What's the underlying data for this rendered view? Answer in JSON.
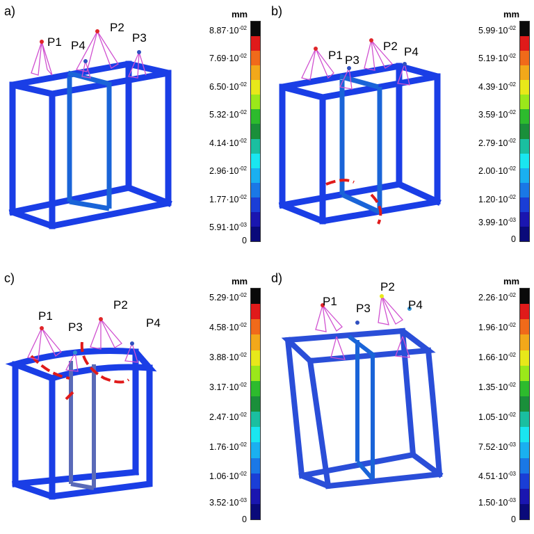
{
  "panels": [
    {
      "id": "a",
      "label": "a)",
      "unit": "mm",
      "ticks": [
        "8.87·10",
        "7.69·10",
        "6.50·10",
        "5.32·10",
        "4.14·10",
        "2.96·10",
        "1.77·10",
        "5.91·10",
        "0"
      ],
      "exps": [
        "-02",
        "-02",
        "-02",
        "-02",
        "-02",
        "-02",
        "-02",
        "-03",
        ""
      ],
      "points": [
        "P1",
        "P4",
        "P2",
        "P3"
      ]
    },
    {
      "id": "b",
      "label": "b)",
      "unit": "mm",
      "ticks": [
        "5.99·10",
        "5.19·10",
        "4.39·10",
        "3.59·10",
        "2.79·10",
        "2.00·10",
        "1.20·10",
        "3.99·10",
        "0"
      ],
      "exps": [
        "-02",
        "-02",
        "-02",
        "-02",
        "-02",
        "-02",
        "-02",
        "-03",
        ""
      ],
      "points": [
        "P1",
        "P3",
        "P2",
        "P4"
      ]
    },
    {
      "id": "c",
      "label": "c)",
      "unit": "mm",
      "ticks": [
        "5.29·10",
        "4.58·10",
        "3.88·10",
        "3.17·10",
        "2.47·10",
        "1.76·10",
        "1.06·10",
        "3.52·10",
        "0"
      ],
      "exps": [
        "-02",
        "-02",
        "-02",
        "-02",
        "-02",
        "-02",
        "-02",
        "-03",
        ""
      ],
      "points": [
        "P1",
        "P3",
        "P2",
        "P4"
      ]
    },
    {
      "id": "d",
      "label": "d)",
      "unit": "mm",
      "ticks": [
        "2.26·10",
        "1.96·10",
        "1.66·10",
        "1.35·10",
        "1.05·10",
        "7.52·10",
        "4.51·10",
        "1.50·10",
        "0"
      ],
      "exps": [
        "-02",
        "-02",
        "-02",
        "-02",
        "-02",
        "-03",
        "-03",
        "-03",
        ""
      ],
      "points": [
        "P1",
        "P3",
        "P2",
        "P4"
      ]
    }
  ],
  "colorscale": [
    "#0a0a0a",
    "#e01a1a",
    "#f06a1a",
    "#f2a81a",
    "#e8e81a",
    "#9be81a",
    "#2dbb2d",
    "#1a8f3a",
    "#1abfa0",
    "#1ae6f0",
    "#1ab0f0",
    "#1a78e6",
    "#1a3ed6",
    "#1a16b0",
    "#0a0a7a"
  ]
}
